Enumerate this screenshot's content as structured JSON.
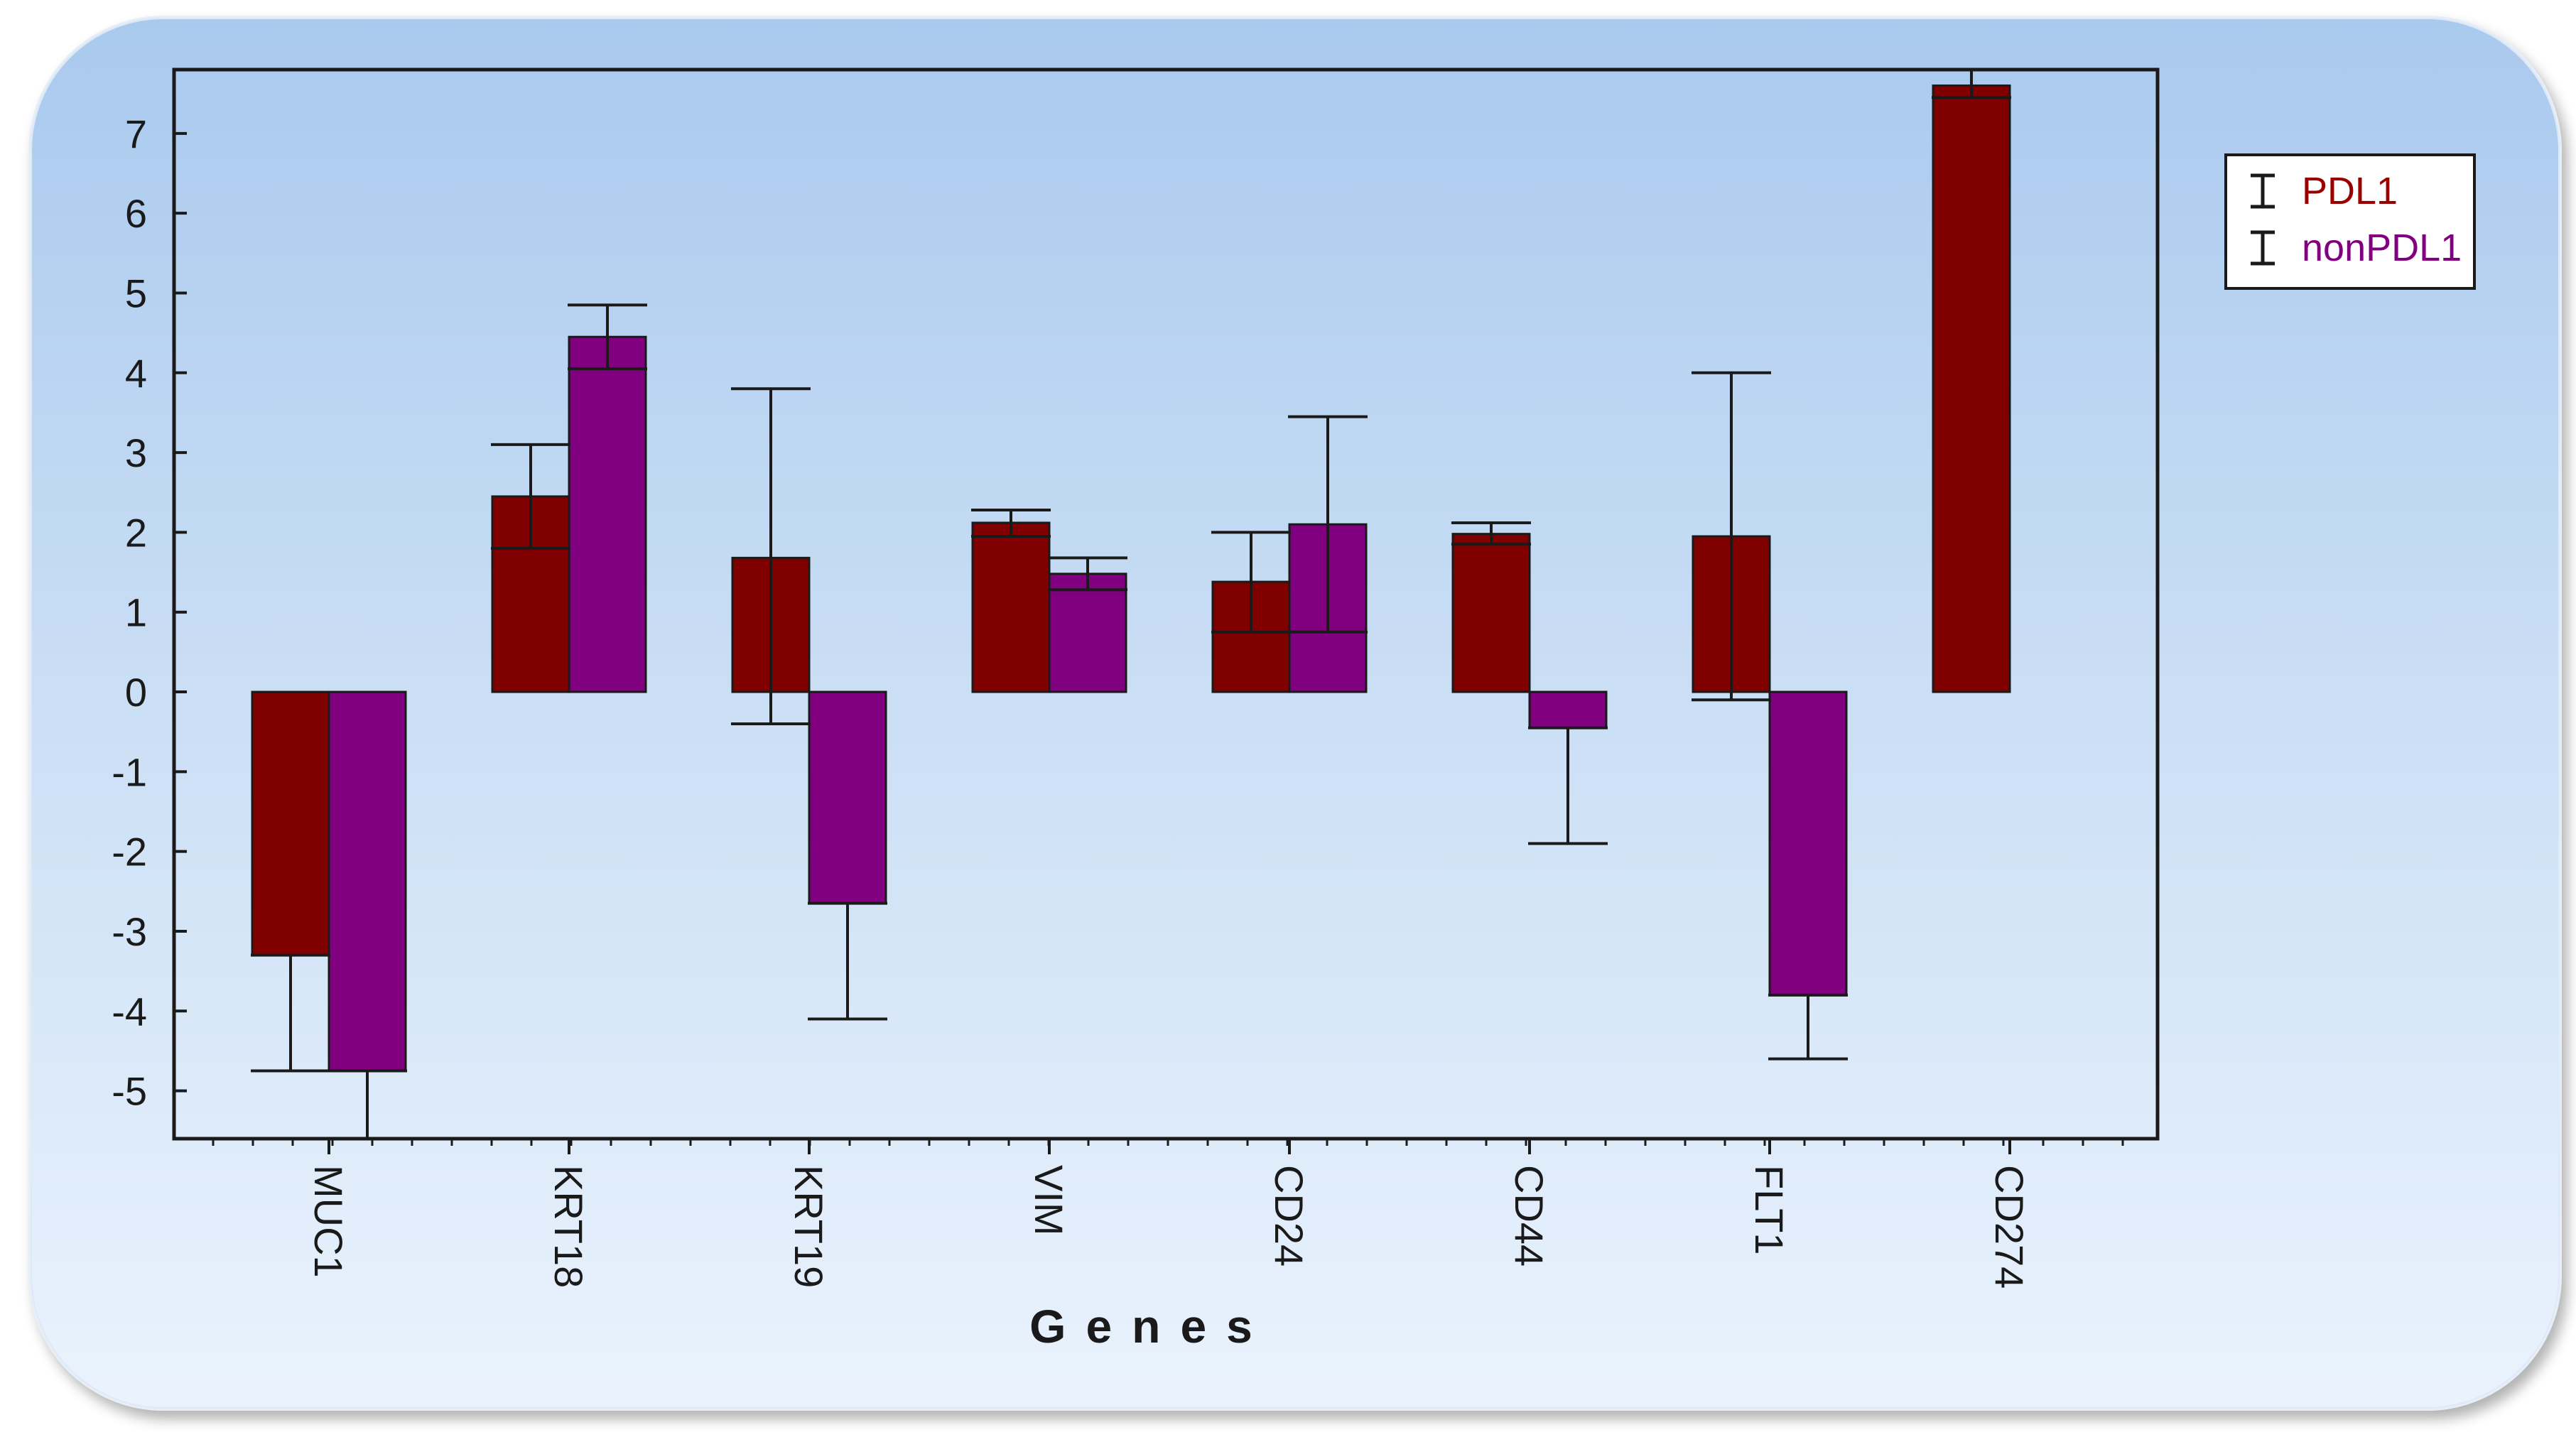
{
  "chart_data": {
    "type": "bar",
    "title": "",
    "xlabel": "Genes",
    "ylabel": "",
    "ylim": [
      -5.6,
      7.8
    ],
    "yticks": [
      -5,
      -4,
      -3,
      -2,
      -1,
      0,
      1,
      2,
      3,
      4,
      5,
      6,
      7
    ],
    "categories": [
      "MUC1",
      "KRT18",
      "KRT19",
      "VIM",
      "CD24",
      "CD44",
      "FLT1",
      "CD274"
    ],
    "series": [
      {
        "name": "PDL1",
        "color": "#800000",
        "values": [
          -3.3,
          2.45,
          1.68,
          2.12,
          1.38,
          1.98,
          1.95,
          7.6
        ],
        "err_low": [
          -4.75,
          1.8,
          -0.4,
          1.95,
          0.75,
          1.85,
          -0.1,
          7.45
        ],
        "err_high": [
          -3.3,
          3.1,
          3.8,
          2.28,
          2.0,
          2.12,
          4.0,
          7.82
        ]
      },
      {
        "name": "nonPDL1",
        "color": "#800080",
        "values": [
          -4.75,
          4.45,
          -2.65,
          1.48,
          2.1,
          -0.45,
          -3.8,
          null
        ],
        "err_low": [
          -5.6,
          4.05,
          -4.1,
          1.28,
          0.75,
          -1.9,
          -4.6,
          null
        ],
        "err_high": [
          -4.75,
          4.85,
          -2.65,
          1.68,
          3.45,
          -0.45,
          -3.8,
          null
        ]
      }
    ],
    "legend": {
      "position": "top-right",
      "entries": [
        "PDL1",
        "nonPDL1"
      ]
    },
    "grid": false
  }
}
